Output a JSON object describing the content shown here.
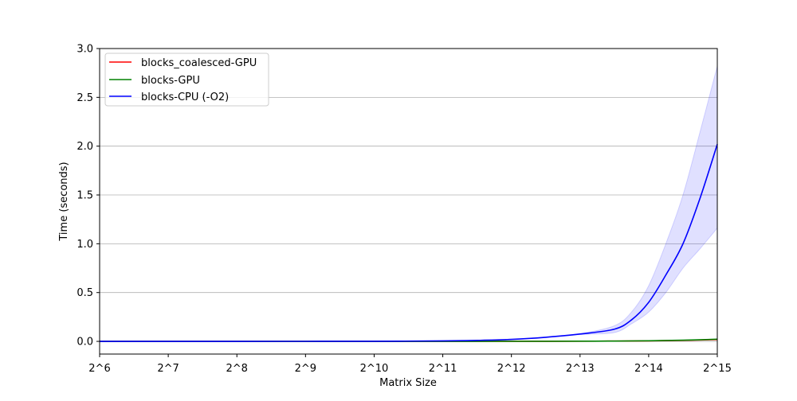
{
  "chart_data": {
    "type": "line",
    "title": "",
    "xlabel": "Matrix Size",
    "ylabel": "Time (seconds)",
    "x_tick_labels": [
      "2^6",
      "2^7",
      "2^8",
      "2^9",
      "2^10",
      "2^11",
      "2^12",
      "2^13",
      "2^14",
      "2^15"
    ],
    "y_tick_labels": [
      "0.0",
      "0.5",
      "1.0",
      "1.5",
      "2.0",
      "2.5",
      "3.0"
    ],
    "x_exponents": [
      6,
      7,
      8,
      9,
      10,
      11,
      12,
      13,
      14,
      15
    ],
    "xlim": [
      6,
      15
    ],
    "ylim": [
      -0.13,
      3.0
    ],
    "grid": "y-major",
    "legend_position": "top-left",
    "series": [
      {
        "name": "blocks_coalesced-GPU",
        "color": "#ff0000",
        "x": [
          6,
          7,
          8,
          9,
          10,
          11,
          12,
          12.5,
          13,
          13.5,
          14,
          14.5,
          15
        ],
        "y": [
          0,
          0,
          0,
          0,
          0,
          0,
          0.001,
          0.001,
          0.002,
          0.003,
          0.005,
          0.01,
          0.018
        ]
      },
      {
        "name": "blocks-GPU",
        "color": "#008000",
        "x": [
          6,
          7,
          8,
          9,
          10,
          11,
          12,
          12.5,
          13,
          13.5,
          14,
          14.5,
          15
        ],
        "y": [
          0,
          0,
          0,
          0,
          0,
          0,
          0.001,
          0.001,
          0.002,
          0.003,
          0.006,
          0.012,
          0.022
        ]
      },
      {
        "name": "blocks-CPU (-O2)",
        "color": "#0000ff",
        "x": [
          6,
          7,
          8,
          9,
          10,
          11,
          11.5,
          12,
          12.5,
          13,
          13.5,
          13.75,
          14,
          14.25,
          14.5,
          14.75,
          15
        ],
        "y": [
          0,
          0,
          0,
          0.0005,
          0.001,
          0.005,
          0.01,
          0.02,
          0.042,
          0.075,
          0.125,
          0.22,
          0.4,
          0.68,
          1.0,
          1.47,
          2.02
        ],
        "band_lower": [
          0,
          0,
          0,
          0.0005,
          0.001,
          0.005,
          0.01,
          0.02,
          0.04,
          0.07,
          0.09,
          0.18,
          0.3,
          0.5,
          0.75,
          0.95,
          1.16
        ],
        "band_upper": [
          0,
          0,
          0,
          0.0005,
          0.001,
          0.005,
          0.01,
          0.02,
          0.045,
          0.08,
          0.16,
          0.3,
          0.57,
          1.0,
          1.5,
          2.15,
          2.82
        ],
        "band_color": "#0000ff"
      }
    ]
  }
}
